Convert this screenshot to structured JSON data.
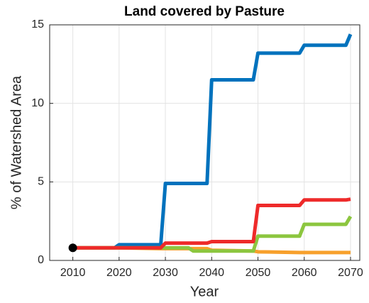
{
  "chart_data": {
    "type": "line",
    "title": "Land covered by Pasture",
    "xlabel": "Year",
    "ylabel": "% of Watershed Area",
    "x": [
      2010,
      2019,
      2020,
      2029,
      2030,
      2035,
      2036,
      2039,
      2040,
      2049,
      2050,
      2059,
      2060,
      2069,
      2070
    ],
    "series": [
      {
        "color": "#0072bd",
        "values": [
          0.8,
          0.8,
          1.0,
          1.0,
          4.9,
          4.9,
          4.9,
          4.9,
          11.5,
          11.5,
          13.2,
          13.2,
          13.7,
          13.7,
          14.4
        ]
      },
      {
        "color": "#f7a02c",
        "values": [
          0.8,
          0.8,
          0.8,
          0.75,
          0.75,
          0.75,
          0.75,
          0.75,
          0.65,
          0.6,
          0.55,
          0.5,
          0.5,
          0.5,
          0.5
        ]
      },
      {
        "color": "#8cc63f",
        "values": [
          0.8,
          0.8,
          0.8,
          0.8,
          0.8,
          0.8,
          0.6,
          0.6,
          0.6,
          0.6,
          1.55,
          1.55,
          2.3,
          2.3,
          2.8
        ]
      },
      {
        "color": "#ee2a2a",
        "values": [
          0.8,
          0.8,
          0.8,
          0.8,
          1.1,
          1.1,
          1.1,
          1.1,
          1.2,
          1.2,
          3.5,
          3.5,
          3.85,
          3.85,
          3.9
        ]
      }
    ],
    "points": [
      {
        "x": 2010,
        "y": 0.8,
        "color": "#000000"
      }
    ],
    "xlim": [
      2005,
      2072
    ],
    "xticks": [
      2010,
      2020,
      2030,
      2040,
      2050,
      2060,
      2070
    ],
    "ylim": [
      0,
      15
    ],
    "yticks": [
      0,
      5,
      10,
      15
    ],
    "grid": true
  }
}
